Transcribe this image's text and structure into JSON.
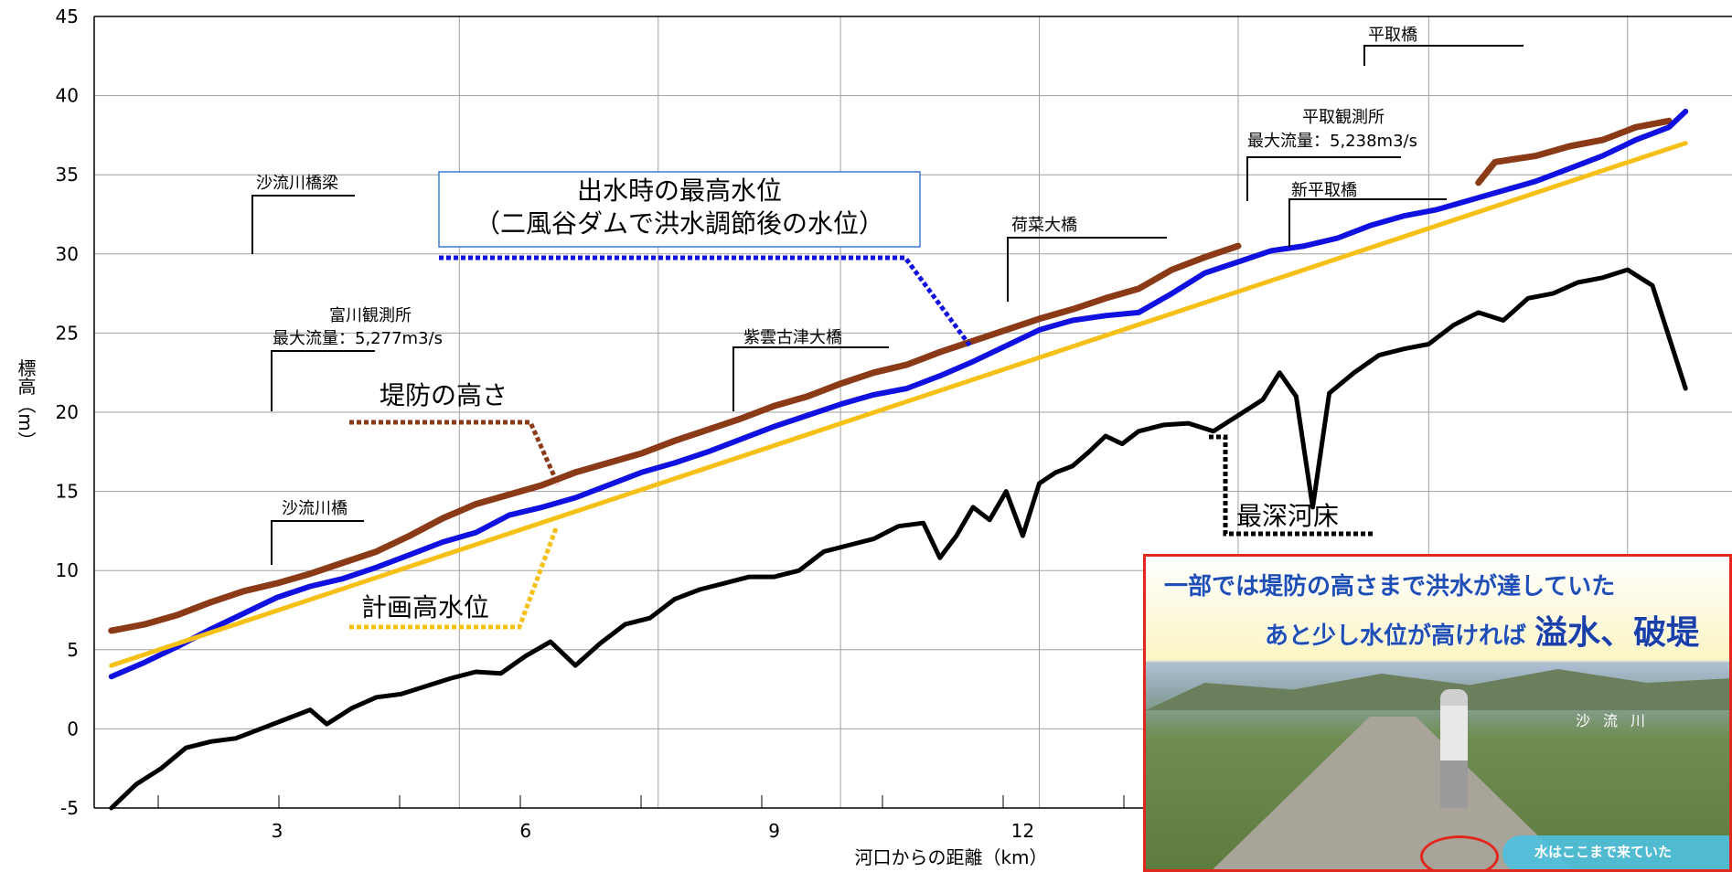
{
  "chart_data": {
    "type": "line",
    "xlabel": "河口からの距離（km）",
    "ylabel": "標高（m）",
    "xlim": [
      1,
      20
    ],
    "ylim": [
      -5,
      45
    ],
    "x_ticks": [
      "3",
      "6",
      "9",
      "12"
    ],
    "y_ticks": [
      "45",
      "40",
      "35",
      "30",
      "25",
      "20",
      "15",
      "10",
      "5",
      "0",
      "-5"
    ],
    "grid": true,
    "series": [
      {
        "name": "堤防の高さ",
        "color": "#8b3a17",
        "segments": [
          [
            [
              1.0,
              6.2
            ],
            [
              1.4,
              6.6
            ],
            [
              1.8,
              7.2
            ],
            [
              2.2,
              8.0
            ],
            [
              2.6,
              8.7
            ],
            [
              3.0,
              9.2
            ],
            [
              3.4,
              9.8
            ],
            [
              3.8,
              10.5
            ],
            [
              4.2,
              11.2
            ],
            [
              4.6,
              12.2
            ],
            [
              5.0,
              13.3
            ],
            [
              5.4,
              14.2
            ],
            [
              5.8,
              14.8
            ],
            [
              6.2,
              15.4
            ],
            [
              6.6,
              16.2
            ],
            [
              7.0,
              16.8
            ],
            [
              7.4,
              17.4
            ],
            [
              7.8,
              18.2
            ],
            [
              8.2,
              18.9
            ],
            [
              8.6,
              19.6
            ],
            [
              9.0,
              20.4
            ],
            [
              9.4,
              21.0
            ],
            [
              9.8,
              21.8
            ],
            [
              10.2,
              22.5
            ],
            [
              10.6,
              23.0
            ],
            [
              11.0,
              23.8
            ],
            [
              11.4,
              24.5
            ],
            [
              11.8,
              25.2
            ],
            [
              12.2,
              25.9
            ],
            [
              12.6,
              26.5
            ],
            [
              13.0,
              27.2
            ],
            [
              13.4,
              27.8
            ],
            [
              13.8,
              29.0
            ],
            [
              14.2,
              29.8
            ],
            [
              14.6,
              30.5
            ]
          ],
          [
            [
              17.5,
              34.5
            ],
            [
              17.7,
              35.8
            ],
            [
              18.2,
              36.2
            ],
            [
              18.6,
              36.8
            ],
            [
              19.0,
              37.2
            ],
            [
              19.4,
              38.0
            ],
            [
              19.8,
              38.4
            ]
          ]
        ]
      },
      {
        "name": "出水時の最高水位",
        "color": "#1010e0",
        "segments": [
          [
            [
              1.0,
              3.3
            ],
            [
              1.4,
              4.2
            ],
            [
              1.8,
              5.2
            ],
            [
              2.2,
              6.3
            ],
            [
              2.6,
              7.3
            ],
            [
              3.0,
              8.3
            ],
            [
              3.4,
              9.0
            ],
            [
              3.8,
              9.5
            ],
            [
              4.2,
              10.2
            ],
            [
              4.6,
              11.0
            ],
            [
              5.0,
              11.8
            ],
            [
              5.4,
              12.4
            ],
            [
              5.8,
              13.5
            ],
            [
              6.2,
              14.0
            ],
            [
              6.6,
              14.6
            ],
            [
              7.0,
              15.4
            ],
            [
              7.4,
              16.2
            ],
            [
              7.8,
              16.8
            ],
            [
              8.2,
              17.5
            ],
            [
              8.6,
              18.3
            ],
            [
              9.0,
              19.1
            ],
            [
              9.4,
              19.8
            ],
            [
              9.8,
              20.5
            ],
            [
              10.2,
              21.1
            ],
            [
              10.6,
              21.5
            ],
            [
              11.0,
              22.3
            ],
            [
              11.4,
              23.2
            ],
            [
              11.8,
              24.2
            ],
            [
              12.2,
              25.2
            ],
            [
              12.6,
              25.8
            ],
            [
              13.0,
              26.1
            ],
            [
              13.4,
              26.3
            ],
            [
              13.8,
              27.5
            ],
            [
              14.2,
              28.8
            ],
            [
              14.6,
              29.5
            ],
            [
              15.0,
              30.2
            ],
            [
              15.4,
              30.5
            ],
            [
              15.8,
              31.0
            ],
            [
              16.2,
              31.8
            ],
            [
              16.6,
              32.4
            ],
            [
              17.0,
              32.8
            ],
            [
              17.4,
              33.4
            ],
            [
              17.8,
              34.0
            ],
            [
              18.2,
              34.6
            ],
            [
              18.6,
              35.4
            ],
            [
              19.0,
              36.2
            ],
            [
              19.4,
              37.2
            ],
            [
              19.8,
              38.0
            ],
            [
              20.0,
              39.0
            ]
          ]
        ]
      },
      {
        "name": "計画高水位",
        "color": "#f7c016",
        "segments": [
          [
            [
              1.0,
              4.0
            ],
            [
              20.0,
              37.0
            ]
          ]
        ]
      },
      {
        "name": "最深河床",
        "color": "#000000",
        "segments": [
          [
            [
              1.0,
              -5.0
            ],
            [
              1.3,
              -3.5
            ],
            [
              1.6,
              -2.5
            ],
            [
              1.9,
              -1.2
            ],
            [
              2.2,
              -0.8
            ],
            [
              2.5,
              -0.6
            ],
            [
              2.8,
              0.0
            ],
            [
              3.1,
              0.6
            ],
            [
              3.4,
              1.2
            ],
            [
              3.6,
              0.3
            ],
            [
              3.9,
              1.3
            ],
            [
              4.2,
              2.0
            ],
            [
              4.5,
              2.2
            ],
            [
              4.8,
              2.7
            ],
            [
              5.1,
              3.2
            ],
            [
              5.4,
              3.6
            ],
            [
              5.7,
              3.5
            ],
            [
              6.0,
              4.6
            ],
            [
              6.3,
              5.5
            ],
            [
              6.6,
              4.0
            ],
            [
              6.9,
              5.4
            ],
            [
              7.2,
              6.6
            ],
            [
              7.5,
              7.0
            ],
            [
              7.8,
              8.2
            ],
            [
              8.1,
              8.8
            ],
            [
              8.4,
              9.2
            ],
            [
              8.7,
              9.6
            ],
            [
              9.0,
              9.6
            ],
            [
              9.3,
              10.0
            ],
            [
              9.6,
              11.2
            ],
            [
              9.9,
              11.6
            ],
            [
              10.2,
              12.0
            ],
            [
              10.5,
              12.8
            ],
            [
              10.8,
              13.0
            ],
            [
              11.0,
              10.8
            ],
            [
              11.2,
              12.2
            ],
            [
              11.4,
              14.0
            ],
            [
              11.6,
              13.2
            ],
            [
              11.8,
              15.0
            ],
            [
              12.0,
              12.2
            ],
            [
              12.2,
              15.5
            ],
            [
              12.4,
              16.2
            ],
            [
              12.6,
              16.6
            ],
            [
              12.8,
              17.5
            ],
            [
              13.0,
              18.5
            ],
            [
              13.2,
              18.0
            ],
            [
              13.4,
              18.8
            ],
            [
              13.7,
              19.2
            ],
            [
              14.0,
              19.3
            ],
            [
              14.3,
              18.8
            ],
            [
              14.6,
              19.8
            ],
            [
              14.9,
              20.8
            ],
            [
              15.1,
              22.5
            ],
            [
              15.3,
              21.0
            ],
            [
              15.5,
              14.0
            ],
            [
              15.7,
              21.2
            ],
            [
              16.0,
              22.5
            ],
            [
              16.3,
              23.6
            ],
            [
              16.6,
              24.0
            ],
            [
              16.9,
              24.3
            ],
            [
              17.2,
              25.5
            ],
            [
              17.5,
              26.3
            ],
            [
              17.8,
              25.8
            ],
            [
              18.1,
              27.2
            ],
            [
              18.4,
              27.5
            ],
            [
              18.7,
              28.2
            ],
            [
              19.0,
              28.5
            ],
            [
              19.3,
              29.0
            ],
            [
              19.6,
              28.0
            ],
            [
              20.0,
              21.5
            ]
          ]
        ]
      }
    ],
    "annotations": [
      {
        "text": "出水時の最高水位"
      },
      {
        "text": "（二風谷ダムで洪水調節後の水位）"
      },
      {
        "text": "堤防の高さ"
      },
      {
        "text": "計画高水位"
      },
      {
        "text": "最深河床"
      },
      {
        "text": "沙流川橋梁"
      },
      {
        "text": "富川観測所"
      },
      {
        "text": "最大流量：5,277m3/s"
      },
      {
        "text": "沙流川橋"
      },
      {
        "text": "紫雲古津大橋"
      },
      {
        "text": "荷菜大橋"
      },
      {
        "text": "平取観測所"
      },
      {
        "text": "最大流量：5,238m3/s"
      },
      {
        "text": "新平取橋"
      },
      {
        "text": "平取橋"
      }
    ]
  },
  "photo": {
    "line1": "一部では堤防の高さまで洪水が達していた",
    "line2_prefix": "あと少し水位が高ければ",
    "line2_emphasis": "溢水、破堤",
    "river_label": "沙流川",
    "arrow_label": "水はここまで来ていた"
  }
}
